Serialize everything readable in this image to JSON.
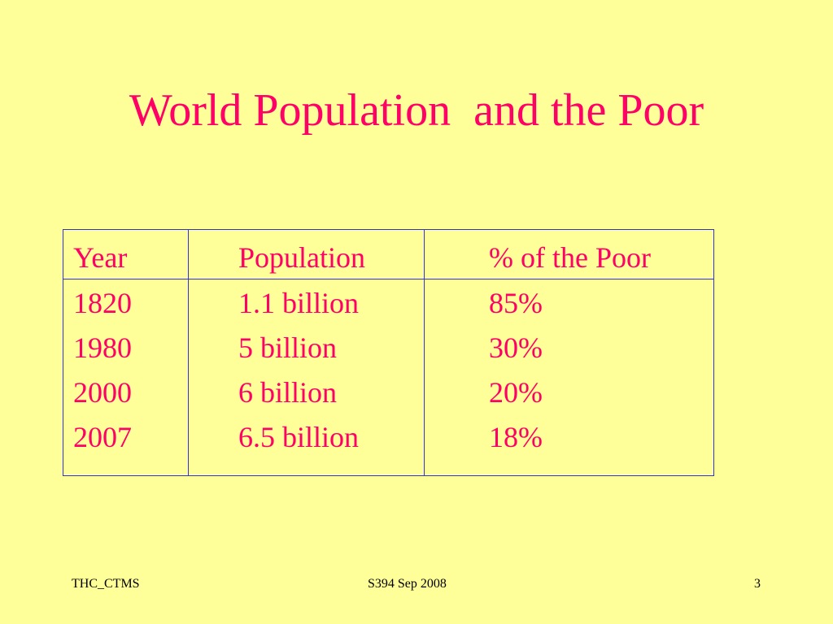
{
  "slide": {
    "title": "World Population  and the Poor",
    "background_color": "#ffff99",
    "title_color": "#ff0066",
    "border_color": "#3333cc"
  },
  "table": {
    "headers": [
      "Year",
      "Population",
      "% of the Poor"
    ],
    "rows": [
      [
        "1820",
        "1.1 billion",
        "85%"
      ],
      [
        "1980",
        "5 billion",
        "30%"
      ],
      [
        "2000",
        "6 billion",
        "20%"
      ],
      [
        "2007",
        "6.5 billion",
        "18%"
      ]
    ]
  },
  "footer": {
    "left": "THC_CTMS",
    "center": "S394 Sep 2008",
    "right": "3"
  }
}
